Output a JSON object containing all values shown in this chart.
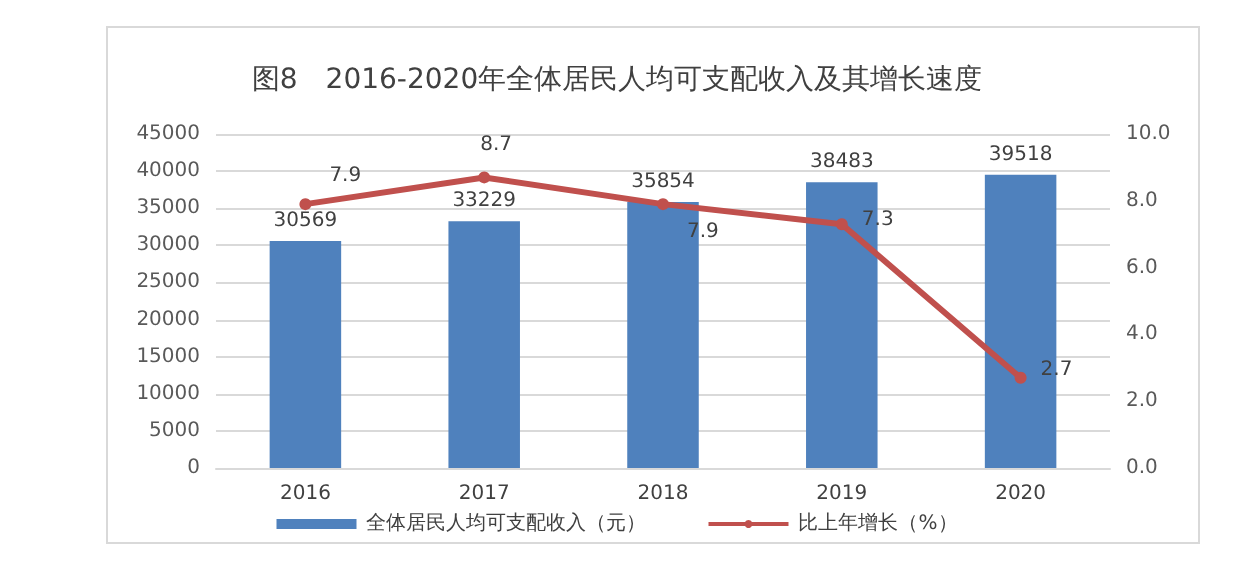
{
  "chart_data": {
    "type": "bar",
    "title": "图8　2016-2020年全体居民人均可支配收入及其增长速度",
    "categories": [
      "2016",
      "2017",
      "2018",
      "2019",
      "2020"
    ],
    "series": [
      {
        "name": "全体居民人均可支配收入（元）",
        "color": "#4f81bd",
        "values": [
          30569,
          33229,
          35854,
          38483,
          39518
        ]
      },
      {
        "name": "比上年增长（%）",
        "type": "line",
        "axis": "y2",
        "color": "#c0504d",
        "values": [
          7.9,
          8.7,
          7.9,
          7.3,
          2.7
        ],
        "marker": "circle"
      }
    ],
    "ylim": [
      0,
      45000
    ],
    "yticks": [
      0,
      5000,
      10000,
      15000,
      20000,
      25000,
      30000,
      35000,
      40000,
      45000
    ],
    "y2lim": [
      0,
      10
    ],
    "y2ticks": [
      {
        "value": 0,
        "label": "0.0"
      },
      {
        "value": 2,
        "label": "2.0"
      },
      {
        "value": 4,
        "label": "4.0"
      },
      {
        "value": 6,
        "label": "6.0"
      },
      {
        "value": 8,
        "label": "8.0"
      },
      {
        "value": 10,
        "label": "10.0"
      }
    ],
    "grid": "y",
    "legend": "bottom",
    "data_labels": true
  }
}
